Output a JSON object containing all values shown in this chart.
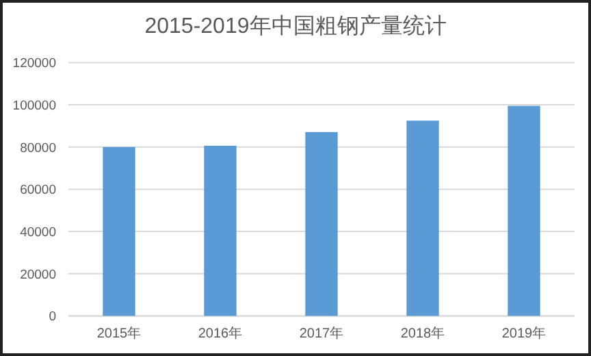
{
  "chart_data": {
    "type": "bar",
    "title": "2015-2019年中国粗钢产量统计",
    "categories": [
      "2015年",
      "2016年",
      "2017年",
      "2018年",
      "2019年"
    ],
    "values": [
      80000,
      80600,
      87100,
      92500,
      99500
    ],
    "color": "#5b9bd5",
    "ylim": [
      0,
      120000
    ],
    "yticks": [
      0,
      20000,
      40000,
      60000,
      80000,
      100000,
      120000
    ],
    "grid": "y"
  }
}
